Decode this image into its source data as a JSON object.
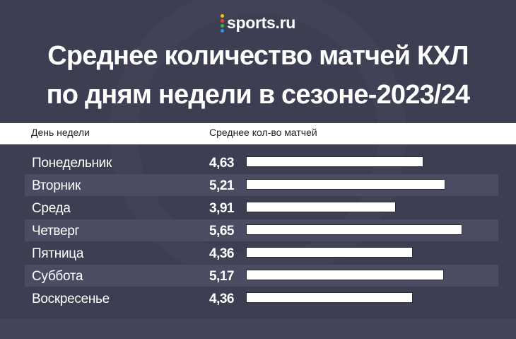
{
  "brand": {
    "name": "sports.ru",
    "dot_colors": [
      "#f5c518",
      "#e8413c",
      "#2fb45a",
      "#3a8ee6"
    ]
  },
  "title_lines": [
    "Среднее количество матчей КХЛ",
    "по дням недели в сезоне-2023/24"
  ],
  "colors": {
    "background": "#3d3e52",
    "row_shade": "#4b4c61",
    "bar": "#ffffff"
  },
  "chart_data": {
    "type": "bar",
    "orientation": "horizontal",
    "title": "Среднее количество матчей КХЛ по дням недели в сезоне-2023/24",
    "xlabel": "Среднее кол-во матчей",
    "ylabel": "День недели",
    "categories": [
      "Понедельник",
      "Вторник",
      "Среда",
      "Четверг",
      "Пятница",
      "Суббота",
      "Воскресенье"
    ],
    "values": [
      4.63,
      5.21,
      3.91,
      5.65,
      4.36,
      5.17,
      4.36
    ],
    "value_labels": [
      "4,63",
      "5,21",
      "3,91",
      "5,65",
      "4,36",
      "5,17",
      "4,36"
    ],
    "xlim": [
      0,
      5.65
    ]
  }
}
